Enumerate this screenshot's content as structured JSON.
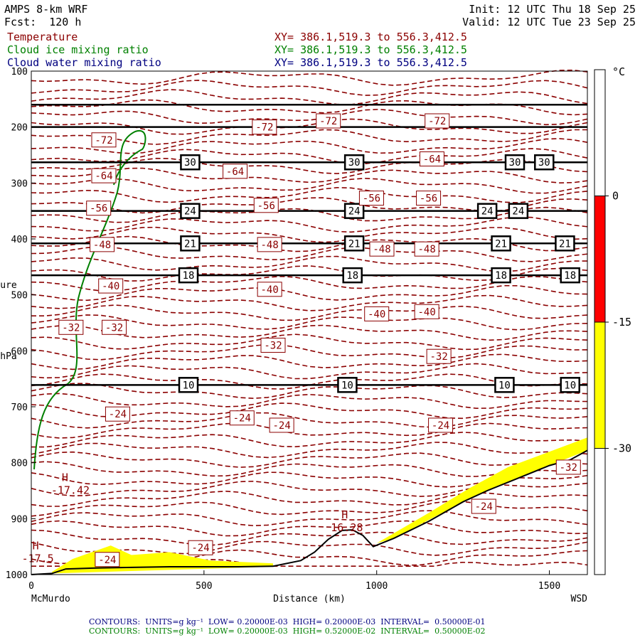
{
  "header": {
    "model": "AMPS 8-km WRF",
    "forecast": "Fcst:  120 h",
    "init": "Init: 12 UTC Thu 18 Sep 25",
    "valid": "Valid: 12 UTC Tue 23 Sep 25",
    "fields": [
      {
        "name": "Temperature",
        "xy": "XY= 386.1,519.3 to 556.3,412.5",
        "color": "#8b0000"
      },
      {
        "name": "Cloud ice mixing ratio",
        "xy": "XY= 386.1,519.3 to 556.3,412.5",
        "color": "#008000"
      },
      {
        "name": "Cloud water mixing ratio",
        "xy": "XY= 386.1,519.3 to 556.3,412.5",
        "color": "#000080"
      }
    ]
  },
  "footer": {
    "lines": [
      {
        "text": "CONTOURS:  UNITS=g kg⁻¹  LOW= 0.20000E-03  HIGH= 0.20000E-03  INTERVAL=  0.50000E-01",
        "color": "#000080"
      },
      {
        "text": "CONTOURS:  UNITS=g kg⁻¹  LOW= 0.20000E-03  HIGH= 0.52000E-02  INTERVAL=  0.50000E-02",
        "color": "#008000"
      }
    ]
  },
  "chart_data": {
    "type": "contour",
    "xlabel": "Distance (km)",
    "x_endpoints": [
      "McMurdo",
      "WSD"
    ],
    "xlim": [
      0,
      1610
    ],
    "xticks": [
      0,
      500,
      1000,
      1500
    ],
    "ylim": [
      1000,
      100
    ],
    "yticks": [
      100,
      200,
      300,
      400,
      500,
      600,
      700,
      800,
      900,
      1000
    ],
    "ylabel_partial": [
      "ure",
      "hPa"
    ],
    "colorbar": {
      "unit": "°C",
      "ticks": [
        0,
        -15,
        -30
      ],
      "bands": [
        {
          "from": 15,
          "to": 0,
          "color": "#ffffff"
        },
        {
          "from": 0,
          "to": -15,
          "color": "#ff0000"
        },
        {
          "from": -15,
          "to": -30,
          "color": "#ffff00"
        },
        {
          "from": -30,
          "to": -45,
          "color": "#ffffff"
        }
      ]
    },
    "theta_lines": [
      {
        "p": 160
      },
      {
        "p": 200
      },
      {
        "p": 263,
        "labels": [
          {
            "x": 460,
            "t": "30"
          },
          {
            "x": 935,
            "t": "30"
          },
          {
            "x": 1400,
            "t": "30"
          },
          {
            "x": 1485,
            "t": "30"
          }
        ]
      },
      {
        "p": 350,
        "labels": [
          {
            "x": 460,
            "t": "24"
          },
          {
            "x": 935,
            "t": "24"
          },
          {
            "x": 1320,
            "t": "24"
          },
          {
            "x": 1410,
            "t": "24"
          }
        ]
      },
      {
        "p": 408,
        "labels": [
          {
            "x": 460,
            "t": "21"
          },
          {
            "x": 935,
            "t": "21"
          },
          {
            "x": 1360,
            "t": "21"
          },
          {
            "x": 1545,
            "t": "21"
          }
        ]
      },
      {
        "p": 465,
        "labels": [
          {
            "x": 455,
            "t": "18"
          },
          {
            "x": 930,
            "t": "18"
          },
          {
            "x": 1360,
            "t": "18"
          },
          {
            "x": 1560,
            "t": "18"
          }
        ]
      },
      {
        "p": 661,
        "labels": [
          {
            "x": 455,
            "t": "10"
          },
          {
            "x": 915,
            "t": "10"
          },
          {
            "x": 1370,
            "t": "10"
          },
          {
            "x": 1560,
            "t": "10"
          }
        ]
      }
    ],
    "temp_labels": [
      {
        "x": 210,
        "p": 223,
        "t": "-72"
      },
      {
        "x": 675,
        "p": 200,
        "t": "-72"
      },
      {
        "x": 860,
        "p": 189,
        "t": "-72"
      },
      {
        "x": 1175,
        "p": 189,
        "t": "-72"
      },
      {
        "x": 210,
        "p": 287,
        "t": "-64"
      },
      {
        "x": 590,
        "p": 279,
        "t": "-64"
      },
      {
        "x": 1160,
        "p": 257,
        "t": "-64"
      },
      {
        "x": 195,
        "p": 345,
        "t": "-56"
      },
      {
        "x": 680,
        "p": 340,
        "t": "-56"
      },
      {
        "x": 985,
        "p": 327,
        "t": "-56"
      },
      {
        "x": 1150,
        "p": 327,
        "t": "-56"
      },
      {
        "x": 205,
        "p": 410,
        "t": "-48"
      },
      {
        "x": 690,
        "p": 410,
        "t": "-48"
      },
      {
        "x": 1015,
        "p": 418,
        "t": "-48"
      },
      {
        "x": 1145,
        "p": 418,
        "t": "-48"
      },
      {
        "x": 230,
        "p": 484,
        "t": "-40"
      },
      {
        "x": 690,
        "p": 490,
        "t": "-40"
      },
      {
        "x": 1000,
        "p": 534,
        "t": "-40"
      },
      {
        "x": 1145,
        "p": 530,
        "t": "-40"
      },
      {
        "x": 115,
        "p": 558,
        "t": "-32"
      },
      {
        "x": 240,
        "p": 558,
        "t": "-32"
      },
      {
        "x": 700,
        "p": 590,
        "t": "-32"
      },
      {
        "x": 1180,
        "p": 610,
        "t": "-32"
      },
      {
        "x": 250,
        "p": 713,
        "t": "-24"
      },
      {
        "x": 610,
        "p": 720,
        "t": "-24"
      },
      {
        "x": 725,
        "p": 733,
        "t": "-24"
      },
      {
        "x": 1185,
        "p": 733,
        "t": "-24"
      },
      {
        "x": 1310,
        "p": 878,
        "t": "-24"
      },
      {
        "x": 1555,
        "p": 808,
        "t": "-32"
      },
      {
        "x": 220,
        "p": 973,
        "t": "-24"
      },
      {
        "x": 490,
        "p": 952,
        "t": "-24"
      }
    ],
    "highs": [
      {
        "x": 150,
        "p": 848,
        "t": "H",
        "v": "-17.42"
      },
      {
        "x": 65,
        "p": 970,
        "t": "H",
        "v": "-17.5"
      },
      {
        "x": 960,
        "p": 915,
        "t": "H",
        "v": "16.28"
      }
    ],
    "terrain": [
      [
        0,
        1000
      ],
      [
        60,
        998
      ],
      [
        100,
        990
      ],
      [
        200,
        988
      ],
      [
        400,
        986
      ],
      [
        600,
        986
      ],
      [
        700,
        985
      ],
      [
        780,
        975
      ],
      [
        820,
        960
      ],
      [
        860,
        937
      ],
      [
        900,
        921
      ],
      [
        930,
        920
      ],
      [
        960,
        930
      ],
      [
        990,
        950
      ],
      [
        1050,
        935
      ],
      [
        1150,
        905
      ],
      [
        1250,
        870
      ],
      [
        1320,
        850
      ],
      [
        1400,
        830
      ],
      [
        1500,
        805
      ],
      [
        1560,
        795
      ],
      [
        1610,
        778
      ]
    ]
  }
}
